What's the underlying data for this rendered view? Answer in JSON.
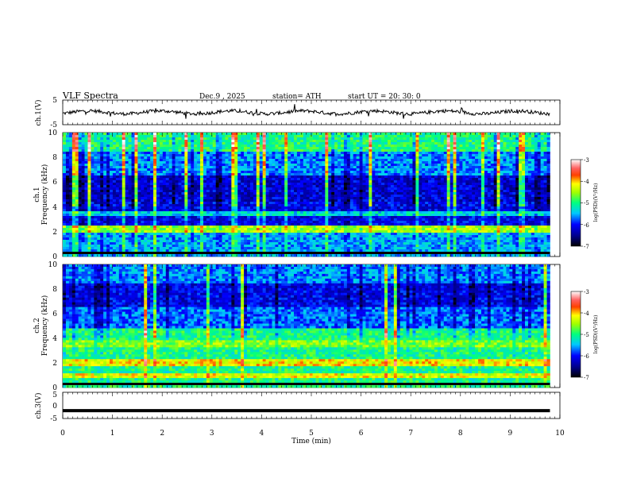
{
  "header": {
    "title": "VLF  Spectra",
    "date": "Dec.9   , 2025",
    "station": "station= ATH",
    "start_ut": "start  UT  =    20: 30: 0"
  },
  "chart_data": [
    {
      "type": "line",
      "name": "ch1-waveform",
      "ylabel": "ch.1(V)",
      "ylim": [
        -5,
        5
      ],
      "yticks": [
        "5",
        "-5"
      ],
      "description_series": "noisy baseline near 0 V with spikes",
      "x_range_min": [
        0,
        9.8
      ]
    },
    {
      "type": "heatmap",
      "name": "ch1-spectrogram",
      "ylabel_line1": "ch.1",
      "ylabel_line2": "Frequency  (kHz)",
      "ylim": [
        0,
        10
      ],
      "yticks": [
        "10",
        "8",
        "6",
        "4",
        "2",
        "0"
      ],
      "xlim": [
        0,
        10
      ],
      "colorbar": {
        "label": "log(PSD)(V²/Hz)",
        "range": [
          -7,
          -3
        ],
        "ticks": [
          "-3",
          "-4",
          "-5",
          "-6",
          "-7"
        ]
      }
    },
    {
      "type": "heatmap",
      "name": "ch2-spectrogram",
      "ylabel_line1": "ch.2",
      "ylabel_line2": "Frequency  (kHz)",
      "ylim": [
        0,
        10
      ],
      "yticks": [
        "10",
        "8",
        "6",
        "4",
        "2",
        "0"
      ],
      "xlim": [
        0,
        10
      ],
      "colorbar": {
        "label": "log(PSD)(V²/Hz)",
        "range": [
          -7,
          -3
        ],
        "ticks": [
          "-3",
          "-4",
          "-5",
          "-6",
          "-7"
        ]
      }
    },
    {
      "type": "line",
      "name": "ch3-waveform",
      "ylabel": "ch.3(V)",
      "ylim": [
        -5,
        5
      ],
      "yticks": [
        "5",
        "0",
        "-5"
      ],
      "level": -2,
      "x_range_min": [
        0,
        9.8
      ]
    }
  ],
  "xaxis": {
    "label": "Time  (min)",
    "ticks": [
      "0",
      "1",
      "2",
      "3",
      "4",
      "5",
      "6",
      "7",
      "8",
      "9",
      "10"
    ]
  }
}
